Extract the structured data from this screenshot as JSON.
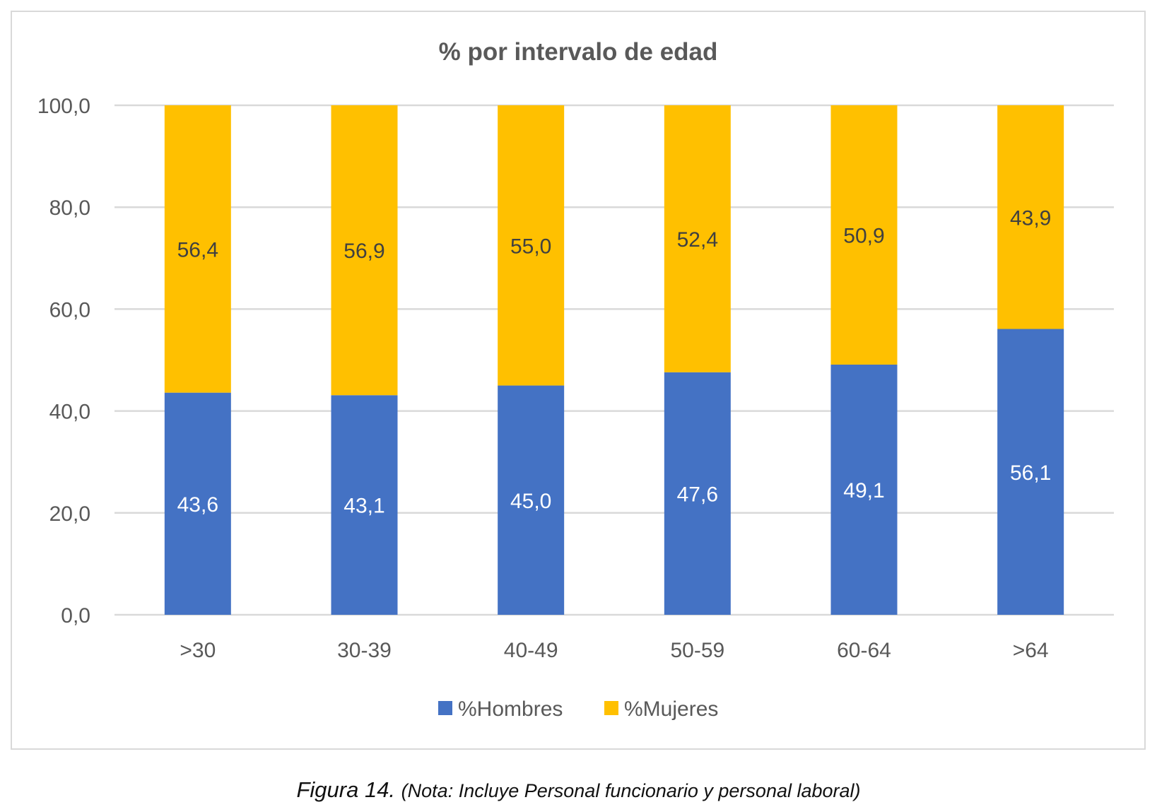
{
  "chart_data": {
    "type": "bar",
    "stacked": true,
    "title": "% por intervalo de edad",
    "categories": [
      ">30",
      "30-39",
      "40-49",
      "50-59",
      "60-64",
      ">64"
    ],
    "series": [
      {
        "name": "%Hombres",
        "color": "#4472c4",
        "values": [
          43.6,
          43.1,
          45.0,
          47.6,
          49.1,
          56.1
        ],
        "labels": [
          "43,6",
          "43,1",
          "45,0",
          "47,6",
          "49,1",
          "56,1"
        ]
      },
      {
        "name": "%Mujeres",
        "color": "#ffc000",
        "values": [
          56.4,
          56.9,
          55.0,
          52.4,
          50.9,
          43.9
        ],
        "labels": [
          "56,4",
          "56,9",
          "55,0",
          "52,4",
          "50,9",
          "43,9"
        ]
      }
    ],
    "ylim": [
      0,
      100
    ],
    "yticks": [
      0,
      20,
      40,
      60,
      80,
      100
    ],
    "ytick_labels": [
      "0,0",
      "20,0",
      "40,0",
      "60,0",
      "80,0",
      "100,0"
    ],
    "grid": true,
    "legend": "bottom"
  },
  "caption": {
    "figure": "Figura 14.",
    "note": "(Nota: Incluye Personal funcionario y personal laboral)"
  }
}
